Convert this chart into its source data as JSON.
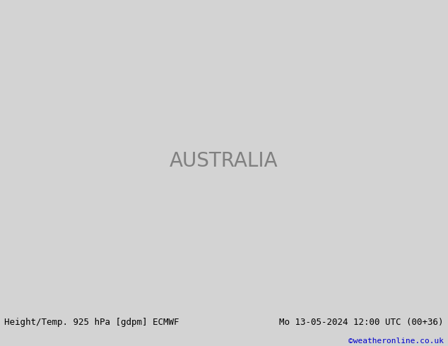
{
  "title_left": "Height/Temp. 925 hPa [gdpm] ECMWF",
  "title_right": "Mo 13-05-2024 12:00 UTC (00+36)",
  "credit": "©weatheronline.co.uk",
  "background_color": "#d3d3d3",
  "land_color": "#90EE90",
  "ocean_color": "#c8c8c8",
  "fig_width": 6.34,
  "fig_height": 4.9,
  "dpi": 100,
  "title_fontsize": 9,
  "credit_fontsize": 8,
  "credit_color": "#0000cc"
}
